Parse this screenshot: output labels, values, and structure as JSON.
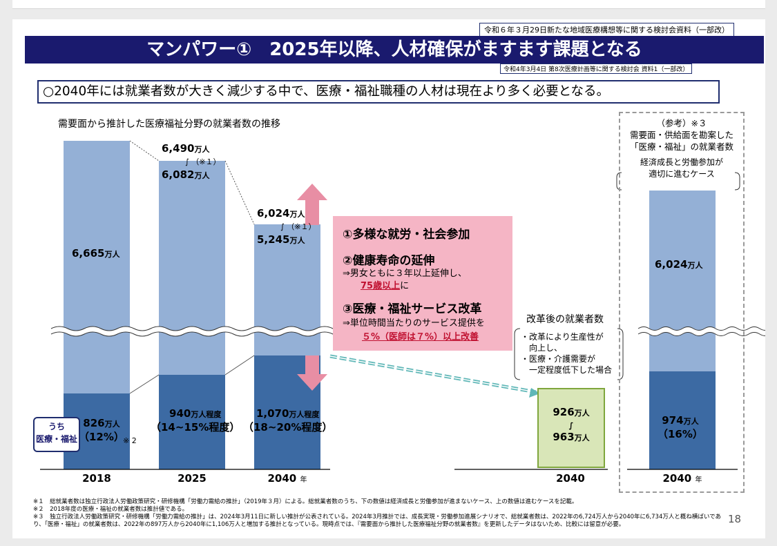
{
  "source_top": "令和６年３月29日新たな地域医療構想等に関する検討会資料（一部改）",
  "title": "マンパワー①　2025年以降、人材確保がますます課題となる",
  "source_sub": "令和4年3月4日 第8次医療計画等に関する検討会 資料1（一部改）",
  "lead": "○2040年には就業者数が大きく減少する中で、医療・福祉職種の人材は現在より多く必要となる。",
  "chart_data": {
    "type": "bar",
    "title": "需要面から推計した医療福祉分野の就業者数の推移",
    "categories": [
      "2018",
      "2025",
      "2040",
      "2040",
      "2040"
    ],
    "total_labels": {
      "y2018": "6,665",
      "y2025_high": "6,490",
      "y2025_low": "6,082",
      "y2040_high": "6,024",
      "y2040_low": "5,245",
      "ref": "6,024"
    },
    "welfare_labels": {
      "y2018": "826",
      "y2018_pct": "（12%）",
      "y2025": "940",
      "y2025_pct": "（14~15%程度）",
      "y2040": "1,070",
      "y2040_pct": "（18~20%程度）",
      "reform_low": "926",
      "reform_high": "963",
      "ref": "974",
      "ref_pct": "（16%）"
    },
    "unit": "万人",
    "unit_about": "万人程度",
    "note_mark": "（※１）",
    "note_mark2": "※ 2",
    "year_suffix": "年",
    "colors": {
      "total": "#94b0d6",
      "welfare": "#3c6aa3",
      "reform": "#d9e6b8"
    }
  },
  "uchi": [
    "うち",
    "医療・福祉"
  ],
  "measures": {
    "m1": "①多様な就労・社会参加",
    "m2": "②健康寿命の延伸",
    "m2_desc": "⇒男女ともに３年以上延伸し、",
    "m2_target": "75歳以上",
    "m2_tail": "に",
    "m3": "③医療・福祉サービス改革",
    "m3_desc": "⇒単位時間当たりのサービス提供を",
    "m3_target": "５%（医師は７%）以上改善"
  },
  "reform": {
    "title": "改革後の就業者数",
    "lines": [
      "・改革により生産性が",
      "　向上し、",
      "・医療・介護需要が",
      "　一定程度低下した場合"
    ]
  },
  "reference": {
    "head": "（参考）※３",
    "line1": "需要面・供給面を勘案した",
    "line2": "「医療・福祉」の就業者数",
    "case1": "経済成長と労働参加が",
    "case2": "適切に進むケース"
  },
  "footnotes": [
    "※１　総就業者数は独立行政法人労働政策研究・研修機構「労働力需給の推計」（2019年３月）による。総就業者数のうち、下の数値は経済成長と労働参加が進まないケース、上の数値は進むケースを記載。",
    "※２　2018年度の医療・福祉の就業者数は推計値である。",
    "※３　独立行政法人労働政策研究・研修機構「労働力需給の推計」は、2024年3月11日に新しい推計が公表されている。2024年3月推計では、成長実現・労働参加進展シナリオで、総就業者数は、2022年の6,724万人から2040年に6,734万人と概ね横ばいであり、「医療・福祉」の就業者数は、2022年の897万人から2040年に1,106万人と増加する推計となっている。現時点では、『需要面から推計した医療福祉分野の就業者数』を更新したデータはないため、比較には留意が必要。"
  ],
  "page_number": "18"
}
